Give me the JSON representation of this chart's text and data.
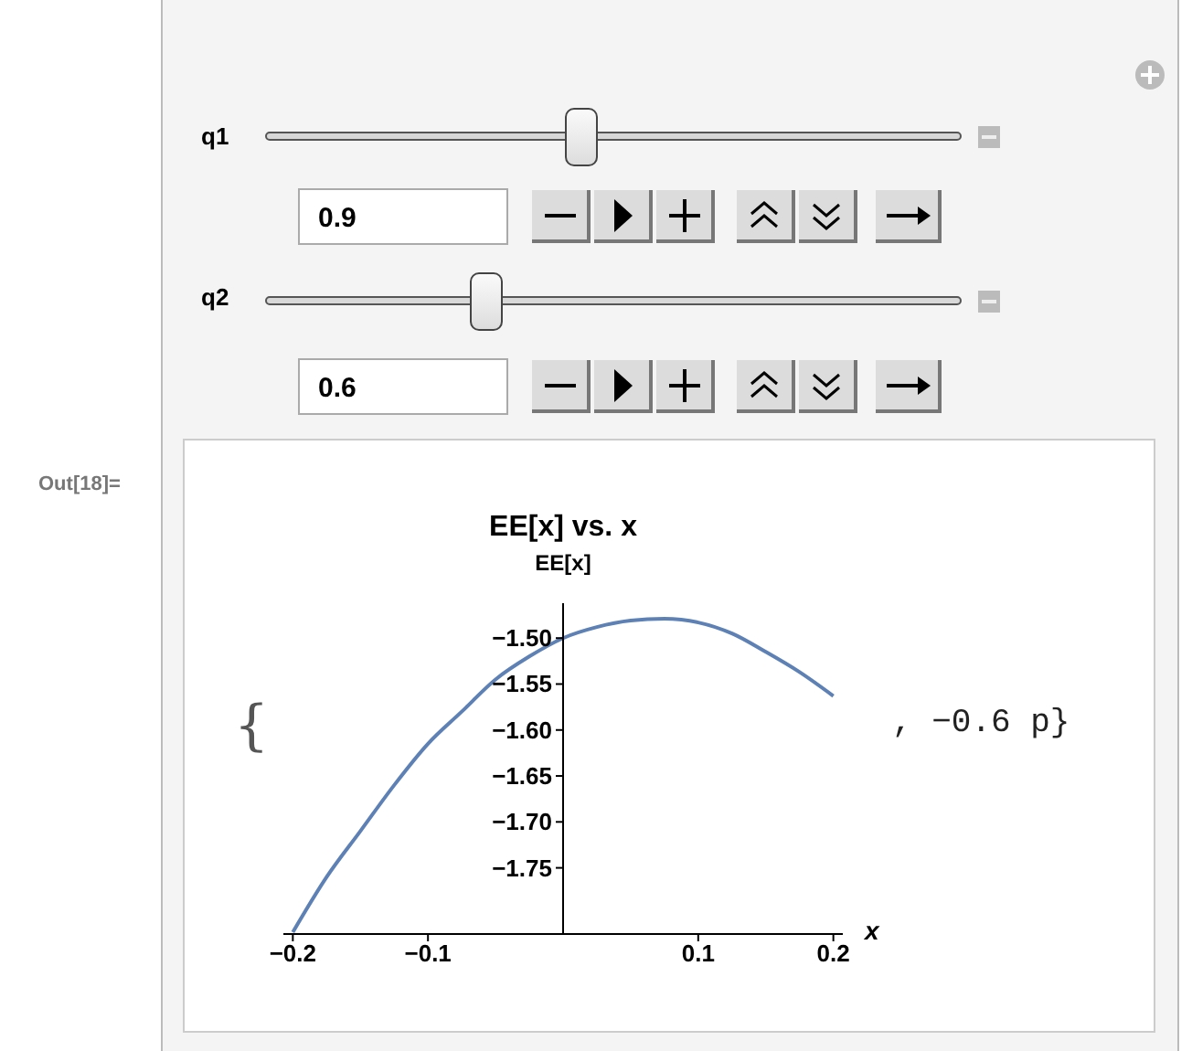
{
  "chart_data": {
    "type": "line",
    "title": "EE[x] vs. x",
    "ylabel": "EE[x]",
    "xlabel": "x",
    "x": [
      -0.2,
      -0.175,
      -0.15,
      -0.125,
      -0.1,
      -0.075,
      -0.05,
      -0.025,
      0,
      0.025,
      0.05,
      0.075,
      0.1,
      0.125,
      0.15,
      0.175,
      0.2
    ],
    "series": [
      {
        "color": "#5e81b5",
        "values": [
          -1.82,
          -1.76,
          -1.71,
          -1.66,
          -1.615,
          -1.58,
          -1.545,
          -1.52,
          -1.5,
          -1.488,
          -1.481,
          -1.479,
          -1.483,
          -1.495,
          -1.515,
          -1.537,
          -1.563
        ]
      }
    ],
    "xlim": [
      -0.207,
      0.207
    ],
    "xticks": [
      {
        "value": -0.2,
        "label": "−0.2"
      },
      {
        "value": -0.1,
        "label": "−0.1"
      },
      0.1,
      0.2
    ],
    "ylim": [
      -1.822,
      -1.462
    ],
    "yticks": [
      {
        "value": -1.5,
        "label": "−1.50"
      },
      {
        "value": -1.55,
        "label": "−1.55"
      },
      {
        "value": -1.6,
        "label": "−1.60"
      },
      {
        "value": -1.65,
        "label": "−1.65"
      },
      {
        "value": -1.7,
        "label": "−1.70"
      },
      {
        "value": -1.75,
        "label": "−1.75"
      }
    ],
    "grid": false,
    "marker": "none",
    "line_style": "solid",
    "annotations": [
      "q1",
      "0.9",
      "q2",
      "0.6",
      "Out[18]=",
      "{",
      ", −0.6 p}"
    ]
  }
}
